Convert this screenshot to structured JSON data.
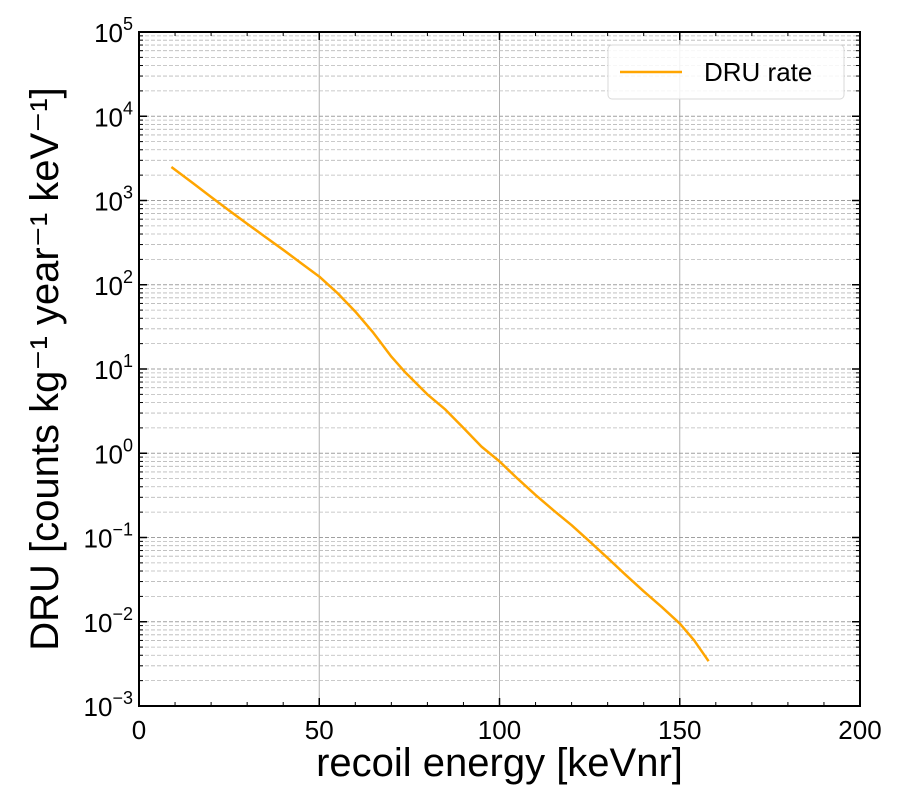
{
  "chart_data": {
    "type": "line",
    "title": "",
    "xlabel": "recoil energy [keVnr]",
    "ylabel": "DRU [counts kg⁻¹ year⁻¹ keV⁻¹]",
    "xlim": [
      0,
      200
    ],
    "ylim": [
      0.001,
      100000
    ],
    "yscale": "log",
    "xticks": [
      0,
      50,
      100,
      150,
      200
    ],
    "yticks": [
      {
        "base": "10",
        "exp": "−3",
        "value": 0.001
      },
      {
        "base": "10",
        "exp": "−2",
        "value": 0.01
      },
      {
        "base": "10",
        "exp": "−1",
        "value": 0.1
      },
      {
        "base": "10",
        "exp": "0",
        "value": 1
      },
      {
        "base": "10",
        "exp": "1",
        "value": 10
      },
      {
        "base": "10",
        "exp": "2",
        "value": 100
      },
      {
        "base": "10",
        "exp": "3",
        "value": 1000
      },
      {
        "base": "10",
        "exp": "4",
        "value": 10000
      },
      {
        "base": "10",
        "exp": "5",
        "value": 100000
      }
    ],
    "grid": true,
    "legend_position": "top-right",
    "series": [
      {
        "name": "DRU rate",
        "color": "#ffa500",
        "x": [
          9,
          15,
          20,
          25,
          30,
          35,
          40,
          45,
          50,
          55,
          60,
          65,
          70,
          74,
          80,
          85,
          90,
          95,
          100,
          105,
          110,
          115,
          120,
          125,
          130,
          135,
          140,
          145,
          150,
          154,
          158
        ],
        "y": [
          2500,
          1600,
          1100,
          760,
          530,
          370,
          260,
          180,
          125,
          80,
          48,
          27,
          14,
          9,
          5,
          3.3,
          2,
          1.2,
          0.8,
          0.5,
          0.32,
          0.21,
          0.14,
          0.09,
          0.057,
          0.036,
          0.023,
          0.015,
          0.0095,
          0.006,
          0.0034
        ]
      }
    ]
  }
}
